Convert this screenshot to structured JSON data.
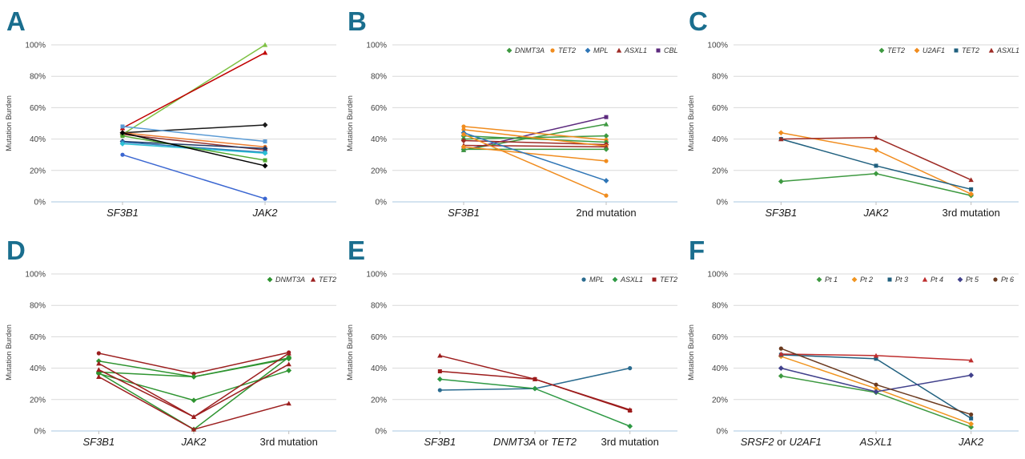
{
  "figure": {
    "ylabel": "Mutation Burden",
    "yticks": [
      [
        0,
        "0%"
      ],
      [
        20,
        "20%"
      ],
      [
        40,
        "40%"
      ],
      [
        60,
        "60%"
      ],
      [
        80,
        "80%"
      ],
      [
        100,
        "100%"
      ]
    ],
    "colors": {
      "panel_letter": "#1A6E8E",
      "gridline": "#D9D9D9",
      "axis_line": "#A9C7E2",
      "tick": "#BFBFBF",
      "tick_text": "#404040",
      "category_text": "#1A1A1A",
      "legend_text": "#333333"
    }
  },
  "chart_data": [
    {
      "type": "line",
      "panel": "A",
      "ylabel": "Mutation Burden",
      "ylim": [
        0,
        100
      ],
      "categories": [
        [
          {
            "text": "SF3B1",
            "italic": true
          }
        ],
        [
          {
            "text": "JAK2",
            "italic": true
          }
        ]
      ],
      "legend": [],
      "series": [
        {
          "name": "",
          "color": "#7DC142",
          "marker": "triangle",
          "values": [
            43,
            100
          ]
        },
        {
          "name": "",
          "color": "#C00000",
          "marker": "triangle",
          "values": [
            47,
            95
          ]
        },
        {
          "name": "",
          "color": "#1A1A1A",
          "marker": "diamond",
          "values": [
            44,
            49
          ]
        },
        {
          "name": "",
          "color": "#5B9BD5",
          "marker": "square",
          "values": [
            48,
            38.5
          ]
        },
        {
          "name": "",
          "color": "#ED7D31",
          "marker": "circle",
          "values": [
            44,
            35
          ]
        },
        {
          "name": "",
          "color": "#943634",
          "marker": "diamond",
          "values": [
            43,
            33
          ]
        },
        {
          "name": "",
          "color": "#1F3864",
          "marker": "diamond",
          "values": [
            38.5,
            34
          ]
        },
        {
          "name": "",
          "color": "#2E75B6",
          "marker": "square",
          "values": [
            38,
            31.5
          ]
        },
        {
          "name": "",
          "color": "#2BC0D4",
          "marker": "diamond",
          "values": [
            37,
            31
          ]
        },
        {
          "name": "",
          "color": "#4EA72E",
          "marker": "square",
          "values": [
            42,
            26.5
          ]
        },
        {
          "name": "",
          "color": "#000000",
          "marker": "diamond",
          "values": [
            44,
            23
          ]
        },
        {
          "name": "",
          "color": "#3A66D1",
          "marker": "circle",
          "values": [
            30,
            2
          ]
        }
      ]
    },
    {
      "type": "line",
      "panel": "B",
      "ylabel": "Mutation Burden",
      "ylim": [
        0,
        100
      ],
      "categories": [
        [
          {
            "text": "SF3B1",
            "italic": true
          }
        ],
        [
          {
            "text": "2nd mutation",
            "italic": false
          }
        ]
      ],
      "legend": [
        {
          "label": "DNMT3A",
          "color": "#3D9940",
          "marker": "diamond"
        },
        {
          "label": "TET2",
          "color": "#F08C1E",
          "marker": "circle"
        },
        {
          "label": "MPL",
          "color": "#2E75B6",
          "marker": "diamond"
        },
        {
          "label": "ASXL1",
          "color": "#9E2B25",
          "marker": "triangle"
        },
        {
          "label": "CBL",
          "color": "#5C2A7E",
          "marker": "square"
        }
      ],
      "series": [
        {
          "name": "CBL",
          "color": "#5C2A7E",
          "marker": "square",
          "values": [
            33,
            54
          ]
        },
        {
          "name": "DNMT3A",
          "color": "#3D9940",
          "marker": "triangle",
          "values": [
            33,
            49.5
          ]
        },
        {
          "name": "DNMT3A",
          "color": "#3D9940",
          "marker": "diamond",
          "values": [
            40,
            42
          ]
        },
        {
          "name": "TET2",
          "color": "#F08C1E",
          "marker": "circle",
          "values": [
            48,
            39.5
          ]
        },
        {
          "name": "DNMT3A",
          "color": "#3D9940",
          "marker": "diamond",
          "values": [
            42,
            38
          ]
        },
        {
          "name": "ASXL1",
          "color": "#9E2B25",
          "marker": "diamond",
          "values": [
            39,
            36.5
          ]
        },
        {
          "name": "TET2",
          "color": "#F08C1E",
          "marker": "circle",
          "values": [
            46,
            35.5
          ]
        },
        {
          "name": "ASXL1",
          "color": "#9E2B25",
          "marker": "triangle",
          "values": [
            36,
            35
          ]
        },
        {
          "name": "DNMT3A",
          "color": "#3D9940",
          "marker": "diamond",
          "values": [
            33.5,
            33.5
          ]
        },
        {
          "name": "TET2",
          "color": "#F08C1E",
          "marker": "circle",
          "values": [
            35,
            26
          ]
        },
        {
          "name": "MPL",
          "color": "#2E75B6",
          "marker": "diamond",
          "values": [
            44,
            13.5
          ]
        },
        {
          "name": "TET2",
          "color": "#F08C1E",
          "marker": "circle",
          "values": [
            43,
            4
          ]
        }
      ]
    },
    {
      "type": "line",
      "panel": "C",
      "ylabel": "Mutation Burden",
      "ylim": [
        0,
        100
      ],
      "categories": [
        [
          {
            "text": "SF3B1",
            "italic": true
          }
        ],
        [
          {
            "text": "JAK2",
            "italic": true
          }
        ],
        [
          {
            "text": "3rd mutation",
            "italic": false
          }
        ]
      ],
      "legend": [
        {
          "label": "TET2",
          "color": "#3D9940",
          "marker": "diamond"
        },
        {
          "label": "U2AF1",
          "color": "#F08C1E",
          "marker": "diamond"
        },
        {
          "label": "TET2",
          "color": "#20607F",
          "marker": "square"
        },
        {
          "label": "ASXL1",
          "color": "#9E2B25",
          "marker": "triangle"
        }
      ],
      "series": [
        {
          "name": "TET2",
          "color": "#3D9940",
          "marker": "diamond",
          "values": [
            13,
            18,
            4
          ]
        },
        {
          "name": "U2AF1",
          "color": "#F08C1E",
          "marker": "diamond",
          "values": [
            44,
            33,
            5
          ]
        },
        {
          "name": "TET2",
          "color": "#20607F",
          "marker": "square",
          "values": [
            40,
            23,
            8
          ]
        },
        {
          "name": "ASXL1",
          "color": "#9E2B25",
          "marker": "triangle",
          "values": [
            40,
            41,
            14
          ]
        }
      ]
    },
    {
      "type": "line",
      "panel": "D",
      "ylabel": "Mutation Burden",
      "ylim": [
        0,
        100
      ],
      "categories": [
        [
          {
            "text": "SF3B1",
            "italic": true
          }
        ],
        [
          {
            "text": "JAK2",
            "italic": true
          }
        ],
        [
          {
            "text": "3rd mutation",
            "italic": false
          }
        ]
      ],
      "legend": [
        {
          "label": "DNMT3A",
          "color": "#2E9430",
          "marker": "diamond"
        },
        {
          "label": "TET2",
          "color": "#9C1F1F",
          "marker": "triangle"
        }
      ],
      "series": [
        {
          "name": "TET2",
          "color": "#9C1F1F",
          "marker": "circle",
          "values": [
            49.5,
            36.5,
            50
          ]
        },
        {
          "name": "DNMT3A",
          "color": "#2E9430",
          "marker": "diamond",
          "values": [
            44.5,
            34.5,
            46
          ]
        },
        {
          "name": "DNMT3A",
          "color": "#2E9430",
          "marker": "diamond",
          "values": [
            37.5,
            34.5,
            46.5
          ]
        },
        {
          "name": "DNMT3A",
          "color": "#2E9430",
          "marker": "diamond",
          "values": [
            36.5,
            19.5,
            38.5
          ]
        },
        {
          "name": "DNMT3A",
          "color": "#2E9430",
          "marker": "diamond",
          "values": [
            37,
            1,
            47
          ]
        },
        {
          "name": "TET2",
          "color": "#9C1F1F",
          "marker": "triangle",
          "values": [
            43,
            9,
            49.5
          ]
        },
        {
          "name": "TET2",
          "color": "#9C1F1F",
          "marker": "triangle",
          "values": [
            39,
            9,
            42.5
          ]
        },
        {
          "name": "TET2",
          "color": "#9C1F1F",
          "marker": "triangle",
          "values": [
            34.5,
            1,
            17.5
          ]
        }
      ]
    },
    {
      "type": "line",
      "panel": "E",
      "ylabel": "Mutation Burden",
      "ylim": [
        0,
        100
      ],
      "categories": [
        [
          {
            "text": "SF3B1",
            "italic": true
          }
        ],
        [
          {
            "text": "DNMT3A",
            "italic": true
          },
          {
            "text": " or ",
            "italic": false
          },
          {
            "text": "TET2",
            "italic": true
          }
        ],
        [
          {
            "text": "3rd mutation",
            "italic": false
          }
        ]
      ],
      "legend": [
        {
          "label": "MPL",
          "color": "#2A6B8F",
          "marker": "circle"
        },
        {
          "label": "ASXL1",
          "color": "#2E9944",
          "marker": "diamond"
        },
        {
          "label": "TET2",
          "color": "#9C1B1B",
          "marker": "square"
        }
      ],
      "series": [
        {
          "name": "MPL",
          "color": "#2A6B8F",
          "marker": "circle",
          "values": [
            26,
            27,
            40
          ]
        },
        {
          "name": "ASXL1",
          "color": "#2E9944",
          "marker": "diamond",
          "values": [
            33,
            27,
            3
          ]
        },
        {
          "name": "TET2",
          "color": "#9C1B1B",
          "marker": "triangle",
          "values": [
            48,
            33,
            13.5
          ]
        },
        {
          "name": "TET2",
          "color": "#9C1B1B",
          "marker": "square",
          "values": [
            38,
            33,
            13
          ]
        }
      ]
    },
    {
      "type": "line",
      "panel": "F",
      "ylabel": "Mutation Burden",
      "ylim": [
        0,
        100
      ],
      "categories": [
        [
          {
            "text": "SRSF2",
            "italic": true
          },
          {
            "text": " or ",
            "italic": false
          },
          {
            "text": "U2AF1",
            "italic": true
          }
        ],
        [
          {
            "text": "ASXL1",
            "italic": true
          }
        ],
        [
          {
            "text": "JAK2",
            "italic": true
          }
        ]
      ],
      "legend": [
        {
          "label": "Pt 1",
          "color": "#3D9940",
          "marker": "diamond"
        },
        {
          "label": "Pt 2",
          "color": "#F0941F",
          "marker": "diamond"
        },
        {
          "label": "Pt 3",
          "color": "#20607F",
          "marker": "square"
        },
        {
          "label": "Pt 4",
          "color": "#BE2E2E",
          "marker": "triangle"
        },
        {
          "label": "Pt 5",
          "color": "#41418C",
          "marker": "diamond"
        },
        {
          "label": "Pt 6",
          "color": "#6B3A1F",
          "marker": "circle"
        }
      ],
      "series": [
        {
          "name": "Pt 1",
          "color": "#3D9940",
          "marker": "diamond",
          "values": [
            35,
            24.5,
            2.5
          ]
        },
        {
          "name": "Pt 2",
          "color": "#F0941F",
          "marker": "diamond",
          "values": [
            47.5,
            27,
            4.5
          ]
        },
        {
          "name": "Pt 3",
          "color": "#20607F",
          "marker": "square",
          "values": [
            48.5,
            46,
            8
          ]
        },
        {
          "name": "Pt 4",
          "color": "#BE2E2E",
          "marker": "triangle",
          "values": [
            49,
            48,
            45
          ]
        },
        {
          "name": "Pt 5",
          "color": "#41418C",
          "marker": "diamond",
          "values": [
            40,
            25,
            35.5
          ]
        },
        {
          "name": "Pt 6",
          "color": "#6B3A1F",
          "marker": "circle",
          "values": [
            52.5,
            29.5,
            10.5
          ]
        }
      ]
    }
  ]
}
